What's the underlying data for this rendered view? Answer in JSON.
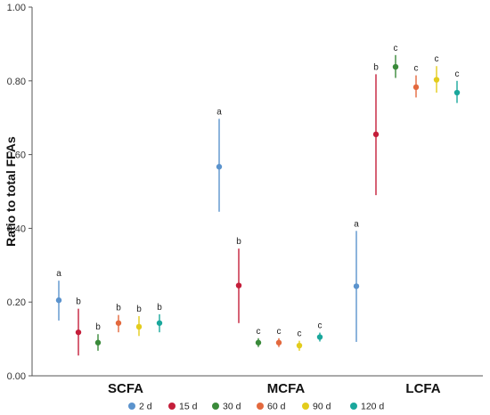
{
  "chart_data": {
    "type": "scatter",
    "title": "",
    "ylabel": "Ratio to total FFAs",
    "xlabel": "",
    "ylim": [
      0,
      1
    ],
    "yticks": [
      "0.00",
      "0.20",
      "0.40",
      "0.60",
      "0.80",
      "1.00"
    ],
    "categories": [
      "SCFA",
      "MCFA",
      "LCFA"
    ],
    "legend_position": "bottom",
    "series": [
      {
        "name": "2 d",
        "color": "#5b93cd",
        "values": [
          0.205,
          0.567,
          0.243
        ],
        "lower": [
          0.15,
          0.445,
          0.092
        ],
        "upper": [
          0.258,
          0.697,
          0.393
        ],
        "labels": [
          "a",
          "a",
          "a"
        ]
      },
      {
        "name": "15 d",
        "color": "#c41e3a",
        "values": [
          0.118,
          0.245,
          0.655
        ],
        "lower": [
          0.055,
          0.143,
          0.49
        ],
        "upper": [
          0.182,
          0.345,
          0.818
        ],
        "labels": [
          "b",
          "b",
          "b"
        ]
      },
      {
        "name": "30 d",
        "color": "#3a8a3a",
        "values": [
          0.09,
          0.09,
          0.838
        ],
        "lower": [
          0.068,
          0.078,
          0.808
        ],
        "upper": [
          0.113,
          0.102,
          0.87
        ],
        "labels": [
          "b",
          "c",
          "c"
        ]
      },
      {
        "name": "60 d",
        "color": "#e3693e",
        "values": [
          0.143,
          0.09,
          0.783
        ],
        "lower": [
          0.118,
          0.078,
          0.755
        ],
        "upper": [
          0.165,
          0.102,
          0.815
        ],
        "labels": [
          "b",
          "c",
          "c"
        ]
      },
      {
        "name": "90 d",
        "color": "#e3cc1c",
        "values": [
          0.133,
          0.082,
          0.803
        ],
        "lower": [
          0.108,
          0.068,
          0.768
        ],
        "upper": [
          0.162,
          0.095,
          0.84
        ],
        "labels": [
          "b",
          "c",
          "c"
        ]
      },
      {
        "name": "120 d",
        "color": "#1aa79c",
        "values": [
          0.143,
          0.105,
          0.768
        ],
        "lower": [
          0.118,
          0.093,
          0.74
        ],
        "upper": [
          0.167,
          0.117,
          0.8
        ],
        "labels": [
          "b",
          "c",
          "c"
        ]
      }
    ]
  }
}
